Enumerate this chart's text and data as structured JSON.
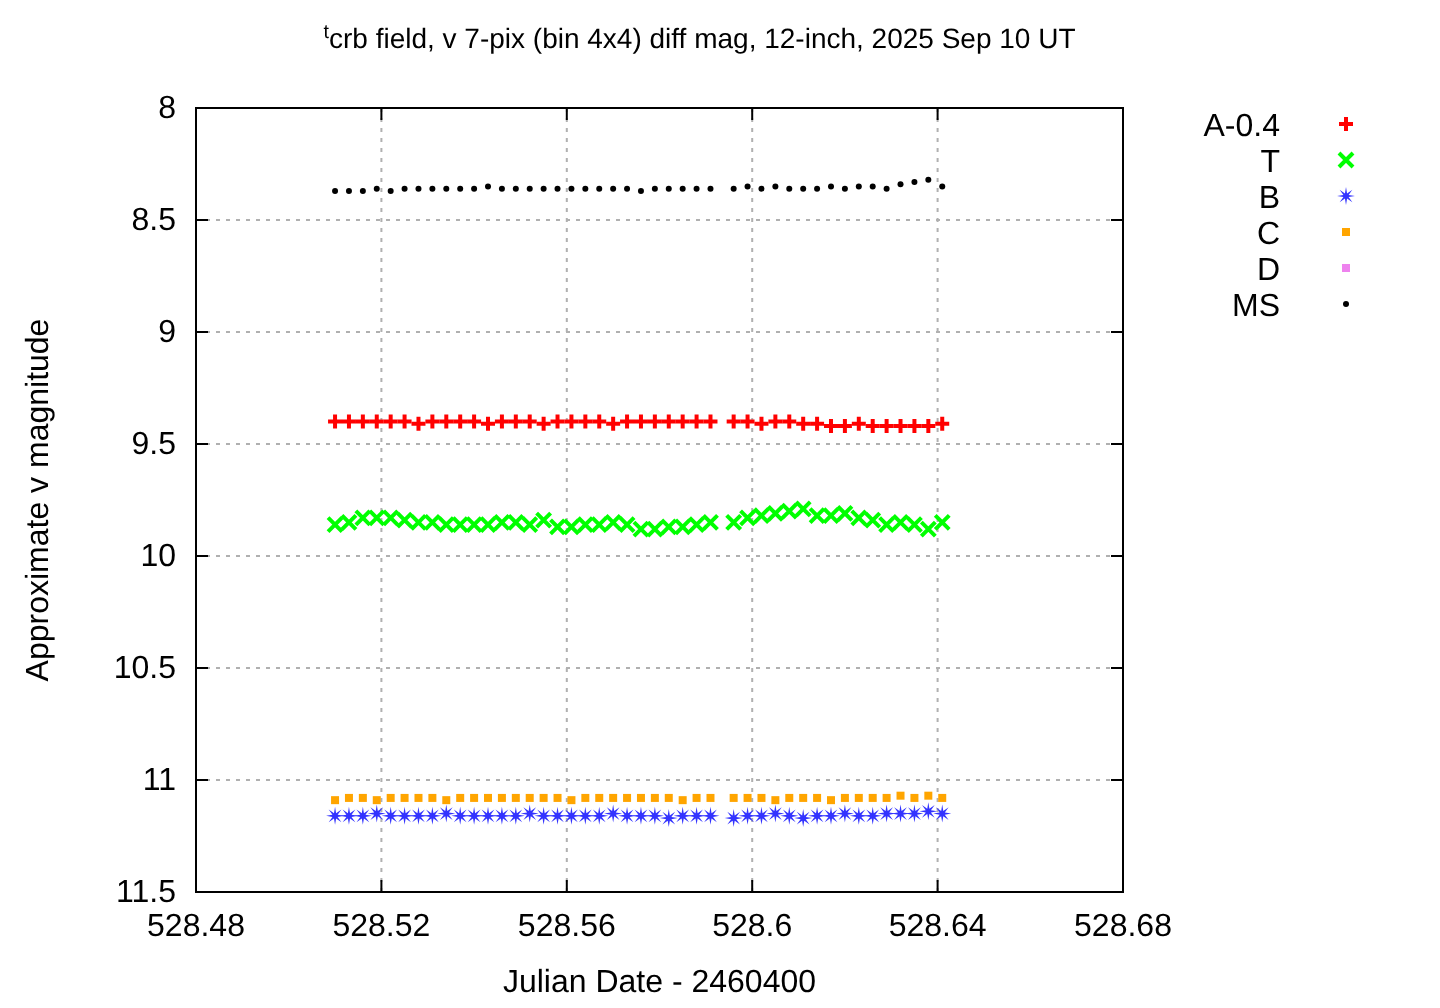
{
  "chart_data": {
    "type": "scatter",
    "title": "$^{t}$crb field, v 7-pix (bin 4x4) diff mag, 12-inch, 2025 Sep 10 UT",
    "xlabel": "Julian Date - 2460400",
    "ylabel": "Approximate v magnitude",
    "x": [
      528.51,
      528.513,
      528.516,
      528.519,
      528.522,
      528.525,
      528.528,
      528.531,
      528.534,
      528.537,
      528.54,
      528.543,
      528.546,
      528.549,
      528.552,
      528.555,
      528.558,
      528.561,
      528.564,
      528.567,
      528.57,
      528.573,
      528.576,
      528.579,
      528.582,
      528.585,
      528.588,
      528.591,
      528.596,
      528.599,
      528.602,
      528.605,
      528.608,
      528.611,
      528.614,
      528.617,
      528.62,
      528.623,
      528.626,
      528.629,
      528.632,
      528.635,
      528.638,
      528.641
    ],
    "series": [
      {
        "name": "A-0.4",
        "color": "#ff0000",
        "marker": "plus",
        "values": [
          9.4,
          9.4,
          9.4,
          9.4,
          9.4,
          9.4,
          9.41,
          9.4,
          9.4,
          9.4,
          9.4,
          9.41,
          9.4,
          9.4,
          9.4,
          9.41,
          9.4,
          9.4,
          9.4,
          9.4,
          9.41,
          9.4,
          9.4,
          9.4,
          9.4,
          9.4,
          9.4,
          9.4,
          9.4,
          9.4,
          9.41,
          9.4,
          9.4,
          9.41,
          9.41,
          9.42,
          9.42,
          9.41,
          9.42,
          9.42,
          9.42,
          9.42,
          9.42,
          9.41
        ]
      },
      {
        "name": "T",
        "color": "#00ff00",
        "marker": "cross",
        "values": [
          9.86,
          9.85,
          9.83,
          9.83,
          9.83,
          9.84,
          9.85,
          9.85,
          9.86,
          9.86,
          9.86,
          9.86,
          9.85,
          9.85,
          9.86,
          9.84,
          9.87,
          9.87,
          9.86,
          9.86,
          9.85,
          9.86,
          9.88,
          9.88,
          9.87,
          9.87,
          9.86,
          9.85,
          9.85,
          9.83,
          9.82,
          9.81,
          9.8,
          9.79,
          9.82,
          9.82,
          9.81,
          9.83,
          9.84,
          9.86,
          9.85,
          9.86,
          9.88,
          9.85
        ]
      },
      {
        "name": "B",
        "color": "#3333ff",
        "marker": "star",
        "values": [
          11.16,
          11.16,
          11.16,
          11.15,
          11.16,
          11.16,
          11.16,
          11.16,
          11.15,
          11.16,
          11.16,
          11.16,
          11.16,
          11.16,
          11.15,
          11.16,
          11.16,
          11.16,
          11.16,
          11.16,
          11.15,
          11.16,
          11.16,
          11.16,
          11.17,
          11.16,
          11.16,
          11.16,
          11.17,
          11.16,
          11.16,
          11.15,
          11.16,
          11.17,
          11.16,
          11.16,
          11.15,
          11.16,
          11.16,
          11.15,
          11.15,
          11.15,
          11.14,
          11.15
        ]
      },
      {
        "name": "C",
        "color": "#ffa500",
        "marker": "square",
        "values": [
          11.09,
          11.08,
          11.08,
          11.09,
          11.08,
          11.08,
          11.08,
          11.08,
          11.09,
          11.08,
          11.08,
          11.08,
          11.08,
          11.08,
          11.08,
          11.08,
          11.08,
          11.09,
          11.08,
          11.08,
          11.08,
          11.08,
          11.08,
          11.08,
          11.08,
          11.09,
          11.08,
          11.08,
          11.08,
          11.08,
          11.08,
          11.09,
          11.08,
          11.08,
          11.08,
          11.09,
          11.08,
          11.08,
          11.08,
          11.08,
          11.07,
          11.08,
          11.07,
          11.08
        ]
      },
      {
        "name": "D",
        "color": "#ee82ee",
        "marker": "square",
        "values": [
          null,
          null,
          null,
          null,
          null,
          null,
          null,
          null,
          null,
          null,
          null,
          null,
          null,
          null,
          null,
          null,
          null,
          null,
          null,
          null,
          null,
          null,
          null,
          null,
          null,
          null,
          null,
          null,
          null,
          null,
          null,
          null,
          null,
          null,
          null,
          null,
          null,
          null,
          null,
          null,
          null,
          null,
          null,
          null
        ]
      },
      {
        "name": "MS",
        "color": "#000000",
        "marker": "circle",
        "values": [
          8.37,
          8.37,
          8.37,
          8.36,
          8.37,
          8.36,
          8.36,
          8.36,
          8.36,
          8.36,
          8.36,
          8.35,
          8.36,
          8.36,
          8.36,
          8.36,
          8.36,
          8.36,
          8.36,
          8.36,
          8.36,
          8.36,
          8.37,
          8.36,
          8.36,
          8.36,
          8.36,
          8.36,
          8.36,
          8.35,
          8.36,
          8.35,
          8.36,
          8.36,
          8.36,
          8.35,
          8.36,
          8.35,
          8.35,
          8.36,
          8.34,
          8.33,
          8.32,
          8.35
        ]
      }
    ],
    "xlim": [
      528.48,
      528.68
    ],
    "xticks": [
      528.48,
      528.52,
      528.56,
      528.6,
      528.64,
      528.68
    ],
    "ylim": [
      11.5,
      8
    ],
    "yticks": [
      8,
      8.5,
      9,
      9.5,
      10,
      10.5,
      11,
      11.5
    ],
    "grid": true,
    "legend": "right"
  }
}
